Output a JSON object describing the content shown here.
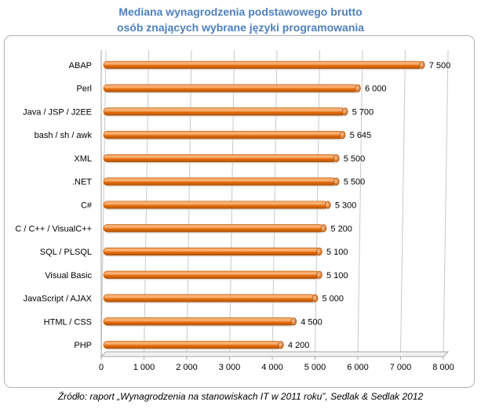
{
  "chart_data": {
    "type": "bar",
    "orientation": "horizontal",
    "title_line1": "Mediana wynagrodzenia podstawowego brutto",
    "title_line2": "osób znających wybrane języki programowania",
    "categories": [
      "ABAP",
      "Perl",
      "Java / JSP / J2EE",
      "bash / sh / awk",
      "XML",
      ".NET",
      "C#",
      "C / C++ / VisualC++",
      "SQL / PLSQL",
      "Visual Basic",
      "JavaScript / AJAX",
      "HTML / CSS",
      "PHP"
    ],
    "values": [
      7500,
      6000,
      5700,
      5645,
      5500,
      5500,
      5300,
      5200,
      5100,
      5100,
      5000,
      4500,
      4200
    ],
    "value_labels": [
      "7 500",
      "6 000",
      "5 700",
      "5 645",
      "5 500",
      "5 500",
      "5 300",
      "5 200",
      "5 100",
      "5 100",
      "5 000",
      "4 500",
      "4 200"
    ],
    "xlim": [
      0,
      8000
    ],
    "xticks": [
      0,
      1000,
      2000,
      3000,
      4000,
      5000,
      6000,
      7000,
      8000
    ],
    "xtick_labels": [
      "0",
      "1 000",
      "2 000",
      "3 000",
      "4 000",
      "5 000",
      "6 000",
      "7 000",
      "8 000"
    ],
    "grid": true,
    "bar_color": "#e46c0a",
    "bar_highlight": "#fbb47a"
  },
  "source_note": "Źródło: raport „Wynagrodzenia na stanowiskach IT w 2011 roku”, Sedlak & Sedlak 2012"
}
